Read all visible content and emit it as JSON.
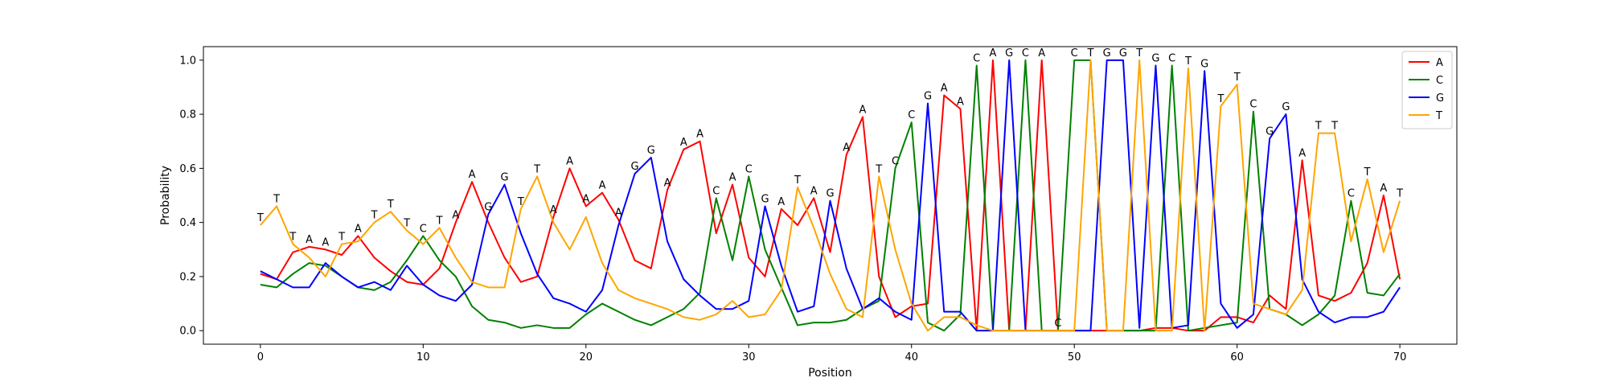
{
  "chart_data": {
    "type": "line",
    "xlabel": "Position",
    "ylabel": "Probability",
    "xlim": [
      -3.5,
      73.5
    ],
    "ylim": [
      -0.05,
      1.05
    ],
    "xticks": [
      0,
      10,
      20,
      30,
      40,
      50,
      60,
      70
    ],
    "yticks": [
      0.0,
      0.2,
      0.4,
      0.6,
      0.8,
      1.0
    ],
    "legend_position": "top-right",
    "grid": false,
    "series": [
      {
        "name": "A",
        "color": "#ff0000",
        "values": [
          0.21,
          0.19,
          0.29,
          0.31,
          0.3,
          0.28,
          0.35,
          0.27,
          0.22,
          0.18,
          0.17,
          0.23,
          0.4,
          0.55,
          0.4,
          0.27,
          0.18,
          0.2,
          0.42,
          0.6,
          0.46,
          0.51,
          0.41,
          0.26,
          0.23,
          0.52,
          0.67,
          0.7,
          0.36,
          0.54,
          0.27,
          0.2,
          0.45,
          0.39,
          0.49,
          0.29,
          0.65,
          0.79,
          0.2,
          0.05,
          0.09,
          0.1,
          0.87,
          0.82,
          0.0,
          1.0,
          0.0,
          0.0,
          1.0,
          0.0,
          0.0,
          0.0,
          0.0,
          0.0,
          0.0,
          0.01,
          0.01,
          0.0,
          0.0,
          0.05,
          0.05,
          0.03,
          0.13,
          0.08,
          0.63,
          0.13,
          0.11,
          0.14,
          0.25,
          0.5,
          0.19
        ]
      },
      {
        "name": "C",
        "color": "#008000",
        "values": [
          0.17,
          0.16,
          0.21,
          0.25,
          0.24,
          0.2,
          0.16,
          0.15,
          0.18,
          0.26,
          0.35,
          0.26,
          0.2,
          0.09,
          0.04,
          0.03,
          0.01,
          0.02,
          0.01,
          0.01,
          0.06,
          0.1,
          0.07,
          0.04,
          0.02,
          0.05,
          0.08,
          0.14,
          0.49,
          0.26,
          0.57,
          0.3,
          0.16,
          0.02,
          0.03,
          0.03,
          0.04,
          0.08,
          0.11,
          0.6,
          0.77,
          0.03,
          0.0,
          0.06,
          0.98,
          0.0,
          0.0,
          1.0,
          0.0,
          0.0,
          1.0,
          1.0,
          0.0,
          0.0,
          0.0,
          0.0,
          0.98,
          0.0,
          0.01,
          0.02,
          0.03,
          0.81,
          0.08,
          0.06,
          0.02,
          0.06,
          0.13,
          0.48,
          0.14,
          0.13,
          0.21
        ]
      },
      {
        "name": "G",
        "color": "#0000ff",
        "values": [
          0.22,
          0.19,
          0.16,
          0.16,
          0.25,
          0.2,
          0.16,
          0.18,
          0.15,
          0.24,
          0.17,
          0.13,
          0.11,
          0.17,
          0.43,
          0.54,
          0.36,
          0.21,
          0.12,
          0.1,
          0.07,
          0.15,
          0.39,
          0.58,
          0.64,
          0.33,
          0.19,
          0.13,
          0.08,
          0.08,
          0.11,
          0.46,
          0.24,
          0.07,
          0.09,
          0.48,
          0.23,
          0.08,
          0.12,
          0.07,
          0.04,
          0.84,
          0.07,
          0.07,
          0.0,
          0.0,
          1.0,
          0.0,
          0.0,
          0.0,
          0.0,
          0.0,
          1.0,
          1.0,
          0.01,
          0.98,
          0.01,
          0.02,
          0.96,
          0.1,
          0.01,
          0.06,
          0.71,
          0.8,
          0.19,
          0.07,
          0.03,
          0.05,
          0.05,
          0.07,
          0.16
        ]
      },
      {
        "name": "T",
        "color": "#ffa500",
        "values": [
          0.39,
          0.46,
          0.32,
          0.27,
          0.2,
          0.32,
          0.33,
          0.4,
          0.44,
          0.37,
          0.32,
          0.38,
          0.27,
          0.18,
          0.16,
          0.16,
          0.45,
          0.57,
          0.4,
          0.3,
          0.42,
          0.25,
          0.15,
          0.12,
          0.1,
          0.08,
          0.05,
          0.04,
          0.06,
          0.11,
          0.05,
          0.06,
          0.15,
          0.53,
          0.38,
          0.21,
          0.08,
          0.05,
          0.57,
          0.3,
          0.1,
          0.0,
          0.05,
          0.05,
          0.02,
          0.0,
          0.0,
          0.0,
          0.0,
          0.0,
          0.0,
          1.0,
          0.0,
          0.0,
          1.0,
          0.0,
          0.0,
          0.97,
          0.0,
          0.83,
          0.91,
          0.1,
          0.08,
          0.06,
          0.15,
          0.73,
          0.73,
          0.33,
          0.56,
          0.29,
          0.48
        ]
      }
    ],
    "peak_labels": [
      "T",
      "T",
      "T",
      "A",
      "A",
      "T",
      "A",
      "T",
      "T",
      "T",
      "C",
      "T",
      "A",
      "A",
      "G",
      "G",
      "T",
      "T",
      "A",
      "A",
      "A",
      "A",
      "A",
      "G",
      "G",
      "A",
      "A",
      "A",
      "C",
      "A",
      "C",
      "G",
      "A",
      "T",
      "A",
      "G",
      "A",
      "A",
      "T",
      "C",
      "C",
      "G",
      "A",
      "A",
      "C",
      "A",
      "G",
      "C",
      "A",
      "C",
      "C",
      "T",
      "G",
      "G",
      "T",
      "G",
      "C",
      "T",
      "G",
      "T",
      "T",
      "C",
      "G",
      "G",
      "A",
      "T",
      "T",
      "C",
      "T",
      "A",
      "T"
    ],
    "legend": [
      {
        "label": "A",
        "color": "#ff0000"
      },
      {
        "label": "C",
        "color": "#008000"
      },
      {
        "label": "G",
        "color": "#0000ff"
      },
      {
        "label": "T",
        "color": "#ffa500"
      }
    ]
  }
}
